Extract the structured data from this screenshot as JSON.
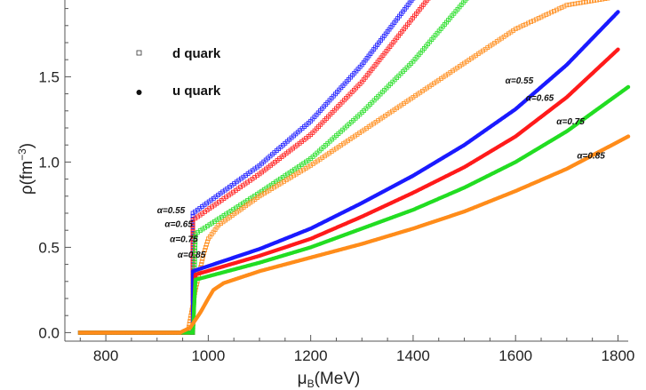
{
  "chart_data": {
    "type": "scatter",
    "xlabel": "μB(MeV)",
    "xlabel_parts": {
      "base": "μ",
      "sub": "B",
      "rest": "(MeV)"
    },
    "ylabel": "ρ(fm⁻³)",
    "ylabel_parts": {
      "base": "ρ",
      "rest": "(fm",
      "sup": "−3",
      "close": ")"
    },
    "xlim": [
      720,
      1820
    ],
    "ylim": [
      -0.05,
      1.95
    ],
    "xticks": [
      800,
      1000,
      1200,
      1400,
      1600,
      1800
    ],
    "yticks": [
      0.0,
      0.5,
      1.0,
      1.5
    ],
    "ytick_labels": [
      "0.0",
      "0.5",
      "1.0",
      "1.5"
    ],
    "grid": false,
    "legend_position": "top-left",
    "legend": [
      {
        "label": "d quark",
        "marker": "open-square"
      },
      {
        "label": "u quark",
        "marker": "filled-circle"
      }
    ],
    "colors": {
      "alpha_0.55": "#1a1aff",
      "alpha_0.65": "#ff1a1a",
      "alpha_0.75": "#22dd22",
      "alpha_0.85": "#ff8c1a",
      "axis": "#555555"
    },
    "series": [
      {
        "quark": "d",
        "alpha": "α=0.55",
        "color": "#1a1aff",
        "x": [
          750,
          970,
          970,
          1100,
          1200,
          1300,
          1400
        ],
        "y": [
          0.0,
          0.0,
          0.7,
          0.98,
          1.24,
          1.57,
          1.96
        ]
      },
      {
        "quark": "d",
        "alpha": "α=0.65",
        "color": "#ff1a1a",
        "x": [
          750,
          970,
          970,
          1100,
          1200,
          1300,
          1430
        ],
        "y": [
          0.0,
          0.0,
          0.66,
          0.93,
          1.16,
          1.47,
          1.96
        ]
      },
      {
        "quark": "d",
        "alpha": "α=0.75",
        "color": "#22dd22",
        "x": [
          750,
          970,
          975,
          1100,
          1200,
          1300,
          1400,
          1505
        ],
        "y": [
          0.0,
          0.0,
          0.58,
          0.82,
          1.02,
          1.29,
          1.59,
          1.96
        ]
      },
      {
        "quark": "d",
        "alpha": "α=0.85",
        "color": "#ff8c1a",
        "x": [
          750,
          960,
          975,
          990,
          1000,
          1020,
          1100,
          1200,
          1300,
          1400,
          1500,
          1600,
          1700,
          1780
        ],
        "y": [
          0.0,
          0.0,
          0.25,
          0.45,
          0.55,
          0.63,
          0.8,
          0.98,
          1.18,
          1.38,
          1.58,
          1.78,
          1.92,
          1.96
        ]
      },
      {
        "quark": "u",
        "alpha": "α=0.55",
        "color": "#1a1aff",
        "x": [
          750,
          970,
          970,
          1100,
          1200,
          1300,
          1400,
          1500,
          1600,
          1700,
          1800
        ],
        "y": [
          0.0,
          0.0,
          0.36,
          0.49,
          0.61,
          0.76,
          0.92,
          1.1,
          1.31,
          1.57,
          1.88
        ]
      },
      {
        "quark": "u",
        "alpha": "α=0.65",
        "color": "#ff1a1a",
        "x": [
          750,
          970,
          975,
          1100,
          1200,
          1300,
          1400,
          1500,
          1600,
          1700,
          1800
        ],
        "y": [
          0.0,
          0.0,
          0.34,
          0.45,
          0.55,
          0.68,
          0.82,
          0.97,
          1.15,
          1.38,
          1.66
        ]
      },
      {
        "quark": "u",
        "alpha": "α=0.75",
        "color": "#22dd22",
        "x": [
          750,
          970,
          975,
          1100,
          1200,
          1300,
          1400,
          1500,
          1600,
          1700,
          1820
        ],
        "y": [
          0.0,
          0.0,
          0.31,
          0.41,
          0.5,
          0.61,
          0.72,
          0.85,
          1.0,
          1.18,
          1.44
        ]
      },
      {
        "quark": "u",
        "alpha": "α=0.85",
        "color": "#ff8c1a",
        "x": [
          750,
          945,
          965,
          985,
          1000,
          1010,
          1030,
          1100,
          1200,
          1300,
          1400,
          1500,
          1600,
          1700,
          1820
        ],
        "y": [
          0.0,
          0.0,
          0.03,
          0.12,
          0.2,
          0.25,
          0.29,
          0.36,
          0.44,
          0.52,
          0.61,
          0.71,
          0.83,
          0.96,
          1.15
        ]
      }
    ],
    "annotations": [
      {
        "text": "α=0.55",
        "x": 1580,
        "y": 1.46
      },
      {
        "text": "α=0.65",
        "x": 1620,
        "y": 1.36
      },
      {
        "text": "α=0.75",
        "x": 1680,
        "y": 1.22
      },
      {
        "text": "α=0.85",
        "x": 1720,
        "y": 1.02
      },
      {
        "text": "α=0.55",
        "x": 900,
        "y": 0.7
      },
      {
        "text": "α=0.65",
        "x": 915,
        "y": 0.62
      },
      {
        "text": "α=0.75",
        "x": 925,
        "y": 0.53
      },
      {
        "text": "α=0.85",
        "x": 940,
        "y": 0.44
      }
    ]
  }
}
